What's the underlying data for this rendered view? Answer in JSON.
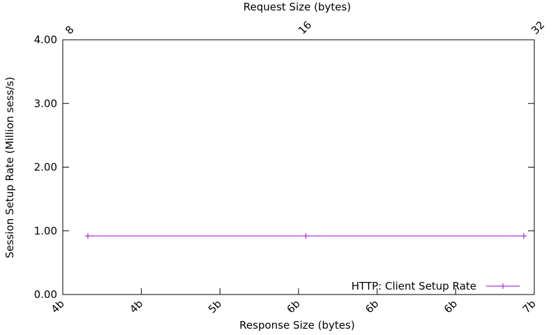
{
  "chart_data": {
    "type": "line",
    "x_axis_bottom": {
      "label": "Response Size (bytes)",
      "ticks": [
        "4b",
        "4b",
        "5b",
        "6b",
        "6b",
        "6b",
        "7b"
      ]
    },
    "x_axis_top": {
      "label": "Request Size (bytes)",
      "ticks": [
        "8",
        "16",
        "32"
      ]
    },
    "y_axis": {
      "label": "Session Setup Rate (Million sess/s)",
      "ticks": [
        "0.00",
        "1.00",
        "2.00",
        "3.00",
        "4.00"
      ],
      "ylim": [
        0,
        4
      ]
    },
    "series": [
      {
        "name": "HTTP: Client Setup Rate",
        "color": "#9400d3",
        "marker": "plus",
        "points": [
          {
            "request_size": 8,
            "y": 0.92
          },
          {
            "request_size": 16,
            "y": 0.92
          },
          {
            "request_size": 32,
            "y": 0.92
          }
        ]
      }
    ],
    "grid": false,
    "legend_position": "bottom-right"
  }
}
